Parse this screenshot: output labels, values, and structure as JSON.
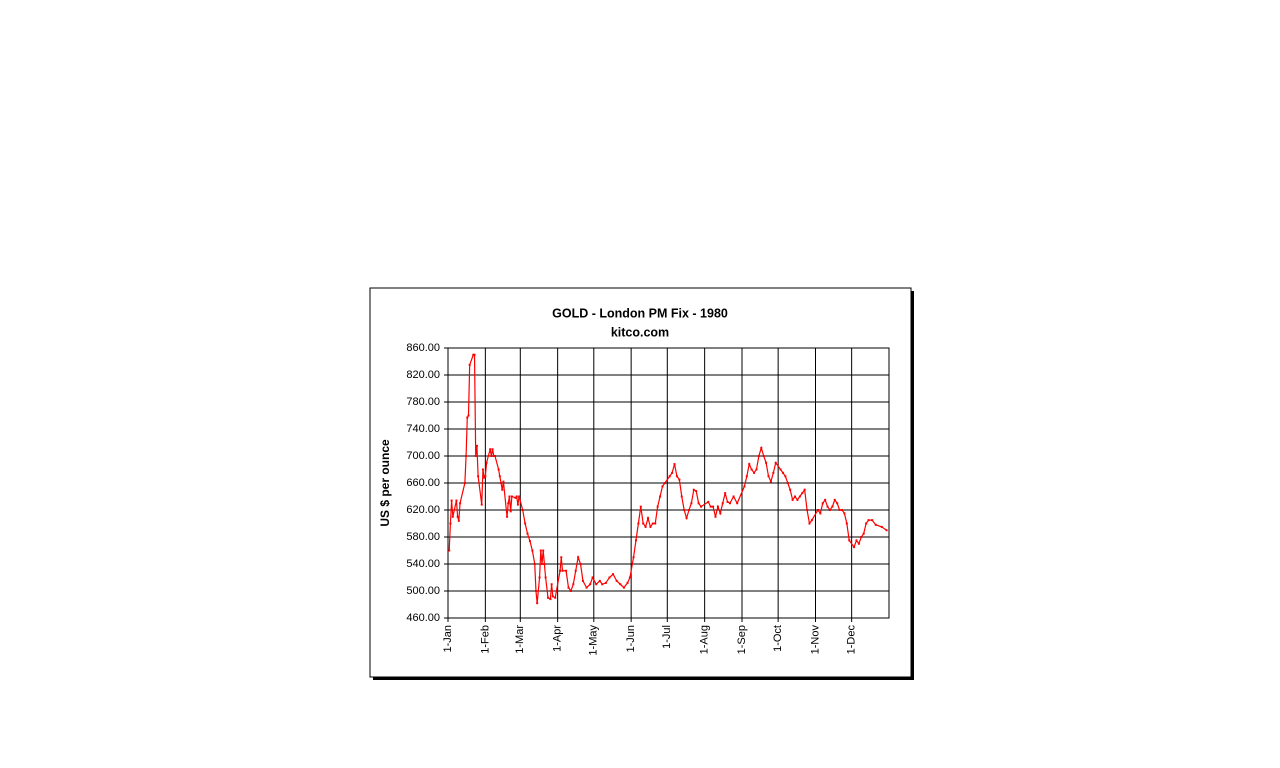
{
  "chart_data": {
    "type": "line",
    "title": "GOLD  -  London PM Fix  -  1980",
    "subtitle": "kitco.com",
    "y_label": "US $ per ounce",
    "grid": true,
    "xlim": [
      0,
      366
    ],
    "xticks": [
      {
        "value": 0,
        "label": "1-Jan"
      },
      {
        "value": 31,
        "label": "1-Feb"
      },
      {
        "value": 60,
        "label": "1-Mar"
      },
      {
        "value": 91,
        "label": "1-Apr"
      },
      {
        "value": 121,
        "label": "1-May"
      },
      {
        "value": 152,
        "label": "1-Jun"
      },
      {
        "value": 182,
        "label": "1-Jul"
      },
      {
        "value": 213,
        "label": "1-Aug"
      },
      {
        "value": 244,
        "label": "1-Sep"
      },
      {
        "value": 274,
        "label": "1-Oct"
      },
      {
        "value": 305,
        "label": "1-Nov"
      },
      {
        "value": 335,
        "label": "1-Dec"
      }
    ],
    "ylim": [
      460,
      860
    ],
    "yticks": [
      {
        "value": 460,
        "label": "460.00"
      },
      {
        "value": 500,
        "label": "500.00"
      },
      {
        "value": 540,
        "label": "540.00"
      },
      {
        "value": 580,
        "label": "580.00"
      },
      {
        "value": 620,
        "label": "620.00"
      },
      {
        "value": 660,
        "label": "660.00"
      },
      {
        "value": 700,
        "label": "700.00"
      },
      {
        "value": 740,
        "label": "740.00"
      },
      {
        "value": 780,
        "label": "780.00"
      },
      {
        "value": 820,
        "label": "820.00"
      },
      {
        "value": 860,
        "label": "860.00"
      }
    ],
    "x": [
      1,
      2,
      3,
      4,
      7,
      8,
      9,
      10,
      14,
      15,
      16,
      17,
      18,
      21,
      22,
      23,
      24,
      25,
      28,
      29,
      30,
      31,
      32,
      35,
      36,
      37,
      38,
      39,
      42,
      43,
      44,
      45,
      46,
      49,
      50,
      51,
      52,
      53,
      56,
      57,
      58,
      59,
      62,
      64,
      66,
      68,
      70,
      72,
      73,
      74,
      76,
      77,
      78,
      79,
      80,
      81,
      83,
      85,
      86,
      87,
      89,
      93,
      94,
      95,
      98,
      100,
      102,
      104,
      106,
      108,
      110,
      112,
      115,
      118,
      120,
      123,
      126,
      128,
      131,
      134,
      137,
      140,
      143,
      146,
      149,
      151,
      154,
      156,
      158,
      160,
      162,
      164,
      166,
      168,
      170,
      172,
      174,
      176,
      178,
      180,
      184,
      186,
      188,
      190,
      192,
      194,
      196,
      198,
      200,
      202,
      204,
      206,
      208,
      210,
      216,
      218,
      220,
      222,
      224,
      226,
      228,
      230,
      232,
      234,
      237,
      240,
      246,
      248,
      250,
      252,
      254,
      256,
      258,
      260,
      262,
      264,
      266,
      268,
      270,
      272,
      276,
      278,
      280,
      282,
      284,
      286,
      288,
      290,
      292,
      294,
      296,
      298,
      300,
      302,
      307,
      309,
      311,
      313,
      315,
      317,
      319,
      321,
      323,
      325,
      327,
      329,
      331,
      333,
      337,
      339,
      341,
      343,
      345,
      347,
      349,
      352,
      355,
      360,
      364
    ],
    "series": [
      {
        "name": "GOLD",
        "color": "#ff0000",
        "values": [
          560,
          600,
          634,
          610,
          634,
          610,
          604,
          630,
          660,
          700,
          757,
          760,
          835,
          850,
          850,
          700,
          715,
          670,
          628,
          680,
          668,
          670,
          690,
          710,
          700,
          710,
          700,
          700,
          680,
          670,
          660,
          650,
          662,
          610,
          630,
          640,
          618,
          640,
          638,
          640,
          628,
          640,
          620,
          600,
          585,
          574,
          560,
          540,
          500,
          482,
          520,
          560,
          540,
          560,
          540,
          520,
          490,
          488,
          510,
          492,
          490,
          530,
          550,
          530,
          530,
          505,
          500,
          510,
          530,
          550,
          540,
          515,
          505,
          510,
          520,
          510,
          515,
          510,
          512,
          520,
          525,
          515,
          510,
          505,
          512,
          520,
          550,
          575,
          600,
          625,
          600,
          595,
          608,
          595,
          600,
          600,
          625,
          640,
          655,
          660,
          670,
          675,
          688,
          670,
          665,
          640,
          620,
          608,
          620,
          630,
          650,
          648,
          630,
          625,
          632,
          625,
          625,
          610,
          625,
          615,
          630,
          645,
          632,
          630,
          640,
          630,
          655,
          670,
          688,
          680,
          675,
          680,
          700,
          712,
          700,
          690,
          670,
          662,
          675,
          690,
          680,
          675,
          670,
          660,
          650,
          635,
          640,
          635,
          640,
          645,
          650,
          620,
          600,
          605,
          620,
          615,
          630,
          635,
          625,
          620,
          625,
          635,
          630,
          620,
          620,
          615,
          600,
          575,
          565,
          575,
          570,
          580,
          585,
          600,
          605,
          605,
          598,
          595,
          590
        ]
      }
    ]
  }
}
